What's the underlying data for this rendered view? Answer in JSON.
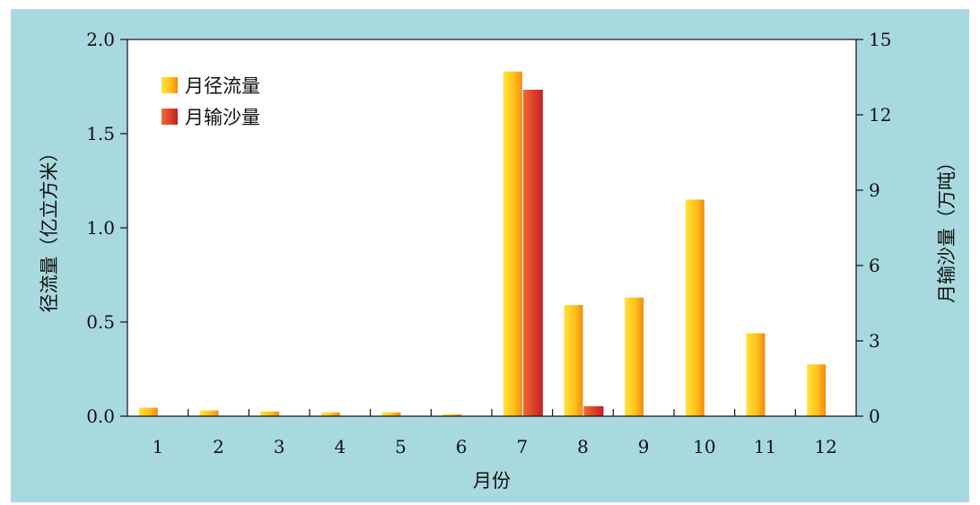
{
  "chart_data": {
    "type": "bar",
    "categories": [
      "1",
      "2",
      "3",
      "4",
      "5",
      "6",
      "7",
      "8",
      "9",
      "10",
      "11",
      "12"
    ],
    "xlabel": "月份",
    "ylabel_left": "径流量（亿立方米）",
    "ylabel_right": "月输沙量（万吨）",
    "ylim_left": [
      0,
      2.0
    ],
    "ylim_right": [
      0,
      15
    ],
    "yticks_left": [
      "0.0",
      "0.5",
      "1.0",
      "1.5",
      "2.0"
    ],
    "yticks_right": [
      "0",
      "3",
      "6",
      "9",
      "12",
      "15"
    ],
    "grid": false,
    "legend_position": "top-left",
    "series": [
      {
        "name": "月径流量",
        "axis": "left",
        "color_top": "#ffd21f",
        "color_bottom": "#f39a1a",
        "values": [
          0.045,
          0.03,
          0.025,
          0.02,
          0.02,
          0.01,
          1.83,
          0.59,
          0.63,
          1.15,
          0.44,
          0.275
        ]
      },
      {
        "name": "月输沙量",
        "axis": "right",
        "color_top": "#ee5a2a",
        "color_bottom": "#c9222a",
        "values": [
          0,
          0,
          0,
          0,
          0,
          0,
          13.0,
          0.4,
          0,
          0,
          0,
          0
        ]
      }
    ]
  }
}
